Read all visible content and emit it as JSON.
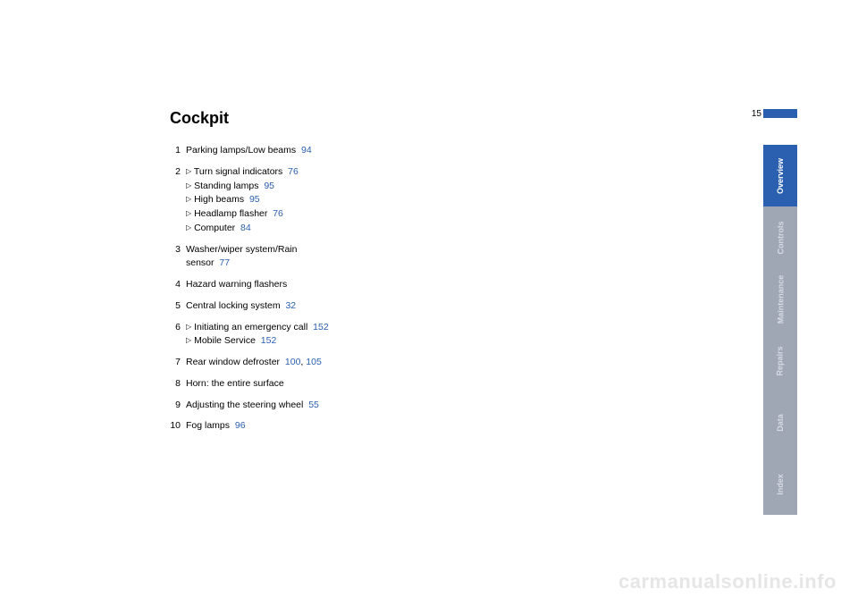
{
  "pageNumber": "15",
  "title": "Cockpit",
  "items": [
    {
      "num": "1",
      "lines": [
        {
          "text": "Parking lamps/Low beams",
          "link": "94"
        }
      ]
    },
    {
      "num": "2",
      "lines": [
        {
          "tri": true,
          "text": "Turn signal indicators",
          "link": "76"
        },
        {
          "tri": true,
          "text": "Standing lamps",
          "link": "95"
        },
        {
          "tri": true,
          "text": "High beams",
          "link": "95"
        },
        {
          "tri": true,
          "text": "Headlamp flasher",
          "link": "76"
        },
        {
          "tri": true,
          "text": "Computer",
          "link": "84"
        }
      ]
    },
    {
      "num": "3",
      "lines": [
        {
          "text": "Washer/wiper system/Rain"
        },
        {
          "text": "sensor",
          "link": "77"
        }
      ]
    },
    {
      "num": "4",
      "lines": [
        {
          "text": "Hazard warning flashers"
        }
      ]
    },
    {
      "num": "5",
      "lines": [
        {
          "text": "Central locking system",
          "link": "32"
        }
      ]
    },
    {
      "num": "6",
      "lines": [
        {
          "tri": true,
          "text": "Initiating an emergency call",
          "link": "152"
        },
        {
          "tri": true,
          "text": "Mobile Service",
          "link": "152"
        }
      ]
    },
    {
      "num": "7",
      "lines": [
        {
          "text": "Rear window defroster",
          "link": "100",
          "sep": ", ",
          "link2": "105"
        }
      ]
    },
    {
      "num": "8",
      "lines": [
        {
          "text": "Horn: the entire surface"
        }
      ]
    },
    {
      "num": "9",
      "lines": [
        {
          "text": "Adjusting the steering wheel",
          "link": "55"
        }
      ]
    },
    {
      "num": "10",
      "lines": [
        {
          "text": "Fog lamps",
          "link": "96"
        }
      ]
    }
  ],
  "tabs": [
    {
      "label": "Overview",
      "active": true
    },
    {
      "label": "Controls",
      "active": false
    },
    {
      "label": "Maintenance",
      "active": false
    },
    {
      "label": "Repairs",
      "active": false
    },
    {
      "label": "Data",
      "active": false
    },
    {
      "label": "Index",
      "active": false
    }
  ],
  "watermark": "carmanualsonline.info",
  "colors": {
    "link": "#2b5fb0",
    "tabActive": "#2b5fb0",
    "tabInactive": "#9fa7b5"
  }
}
